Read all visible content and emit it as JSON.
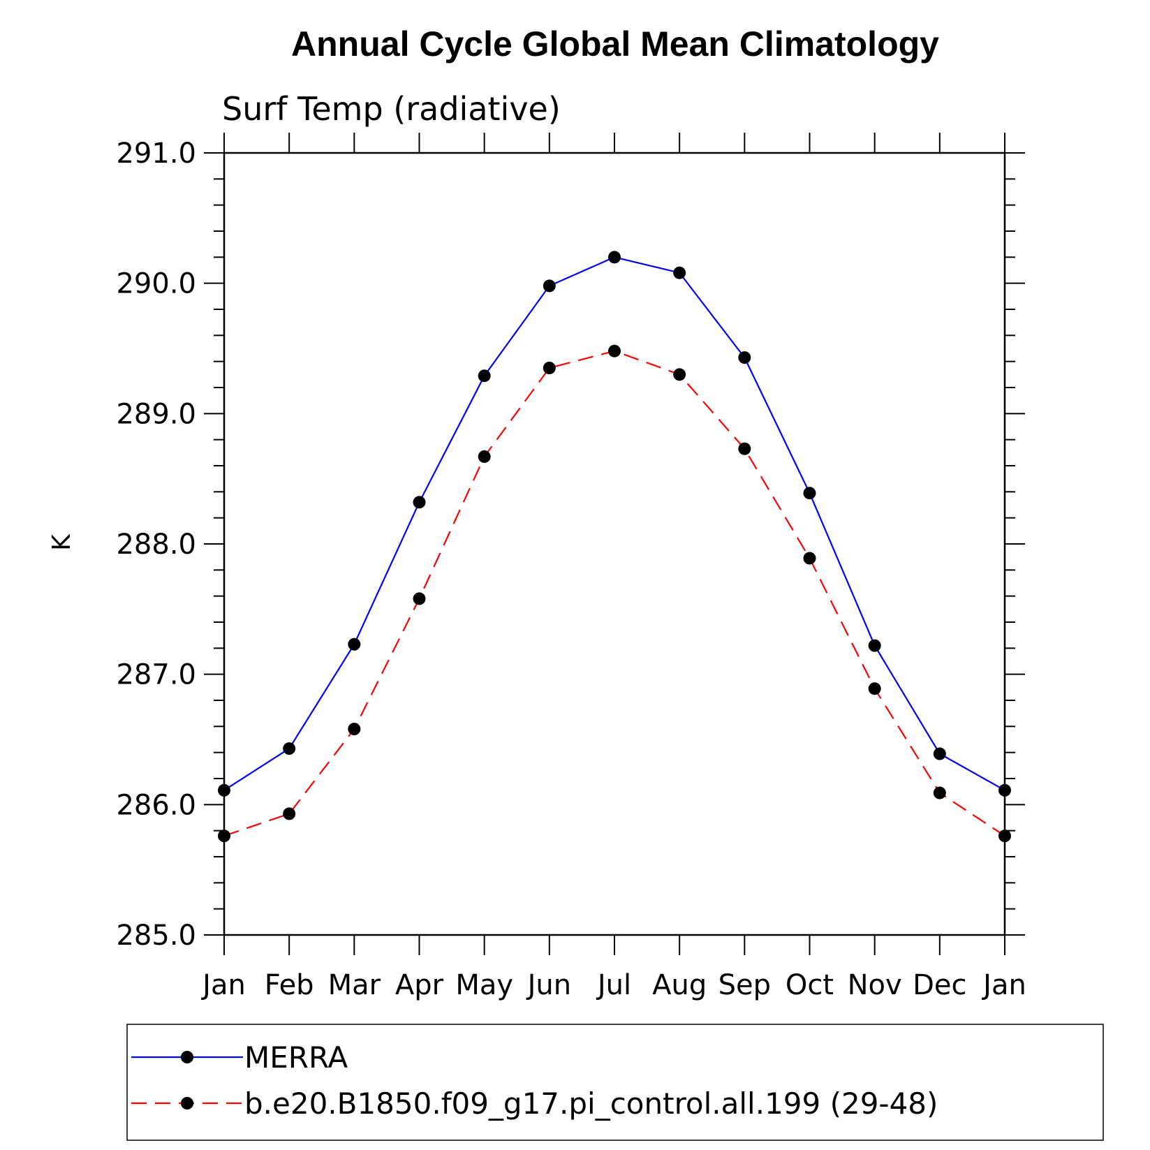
{
  "chart_data": {
    "type": "line",
    "title": "Annual Cycle Global Mean Climatology",
    "subtitle": "Surf Temp (radiative)",
    "xlabel": "",
    "ylabel": "K",
    "categories": [
      "Jan",
      "Feb",
      "Mar",
      "Apr",
      "May",
      "Jun",
      "Jul",
      "Aug",
      "Sep",
      "Oct",
      "Nov",
      "Dec",
      "Jan"
    ],
    "ylim": [
      285.0,
      291.0
    ],
    "yticks": [
      "285.0",
      "286.0",
      "287.0",
      "288.0",
      "289.0",
      "290.0",
      "291.0"
    ],
    "grid": false,
    "legend_position": "bottom",
    "series": [
      {
        "name": "MERRA",
        "color": "#0000ff",
        "line_style": "solid",
        "marker": "circle",
        "values": [
          286.11,
          286.43,
          287.23,
          288.32,
          289.29,
          289.98,
          290.2,
          290.08,
          289.43,
          288.39,
          287.22,
          286.39,
          286.11
        ]
      },
      {
        "name": "b.e20.B1850.f09_g17.pi_control.all.199 (29-48)",
        "color": "#ff0000",
        "line_style": "dashed",
        "marker": "circle",
        "values": [
          285.76,
          285.93,
          286.58,
          287.58,
          288.67,
          289.35,
          289.48,
          289.3,
          288.73,
          287.89,
          286.89,
          286.09,
          285.76
        ]
      }
    ]
  }
}
